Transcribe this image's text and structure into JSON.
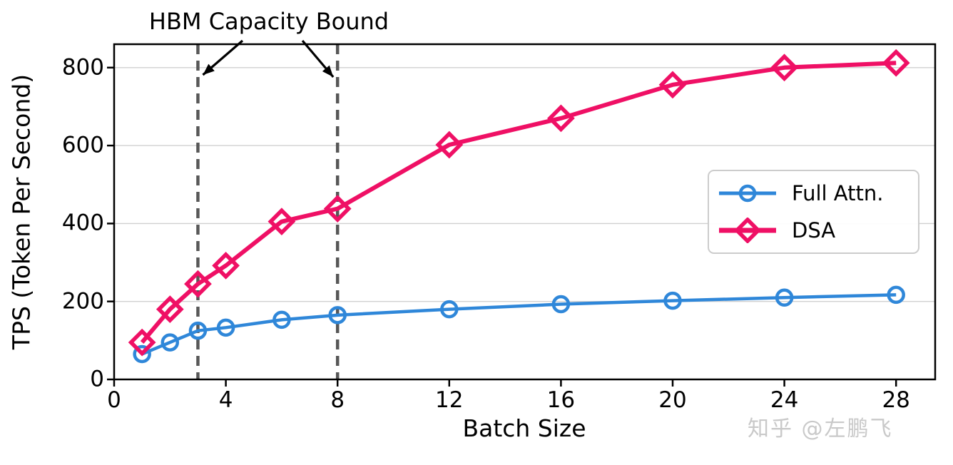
{
  "annotation": {
    "label": "HBM Capacity Bound"
  },
  "watermark": {
    "text": "知乎 @左鹏飞"
  },
  "colors": {
    "full_attn": "#2f87d9",
    "dsa": "#ef1065",
    "vline": "#575757",
    "grid": "#d0d0d0",
    "axis": "#000000",
    "legend_border": "#cccccc",
    "watermark": "#c9c9c9"
  },
  "chart_data": {
    "type": "line",
    "title": "",
    "xlabel": "Batch Size",
    "ylabel": "TPS (Token Per Second)",
    "xlim": [
      0,
      29.4
    ],
    "ylim": [
      0,
      860
    ],
    "x_ticks": [
      0,
      4,
      8,
      12,
      16,
      20,
      24,
      28
    ],
    "y_ticks": [
      0,
      200,
      400,
      600,
      800
    ],
    "grid": "horizontal",
    "legend_position": "center-right",
    "x": [
      1,
      2,
      3,
      4,
      6,
      8,
      12,
      16,
      20,
      24,
      28
    ],
    "series": [
      {
        "name": "Full Attn.",
        "color": "#2f87d9",
        "marker": "circle",
        "values": [
          65,
          95,
          125,
          133,
          153,
          165,
          180,
          193,
          202,
          210,
          217
        ]
      },
      {
        "name": "DSA",
        "color": "#ef1065",
        "marker": "diamond",
        "values": [
          95,
          180,
          245,
          292,
          405,
          438,
          602,
          670,
          756,
          800,
          812
        ]
      }
    ],
    "vlines": {
      "x": [
        3,
        8
      ],
      "style": "dashed",
      "color": "#575757",
      "annotation": "HBM Capacity Bound"
    }
  }
}
